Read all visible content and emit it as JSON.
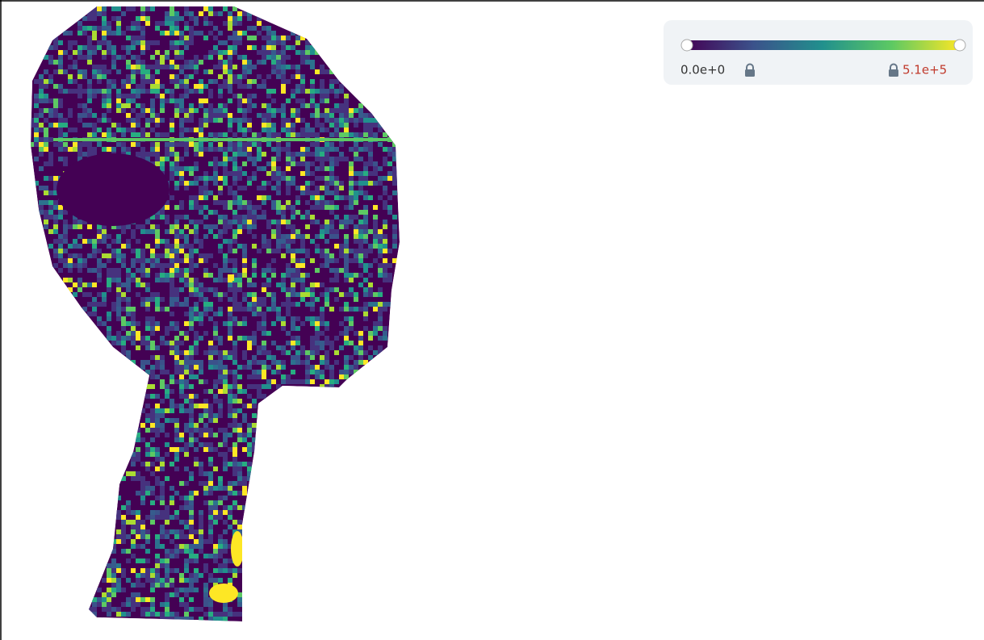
{
  "colorbar": {
    "min_label": "0.0e+0",
    "max_label": "5.1e+5"
  }
}
